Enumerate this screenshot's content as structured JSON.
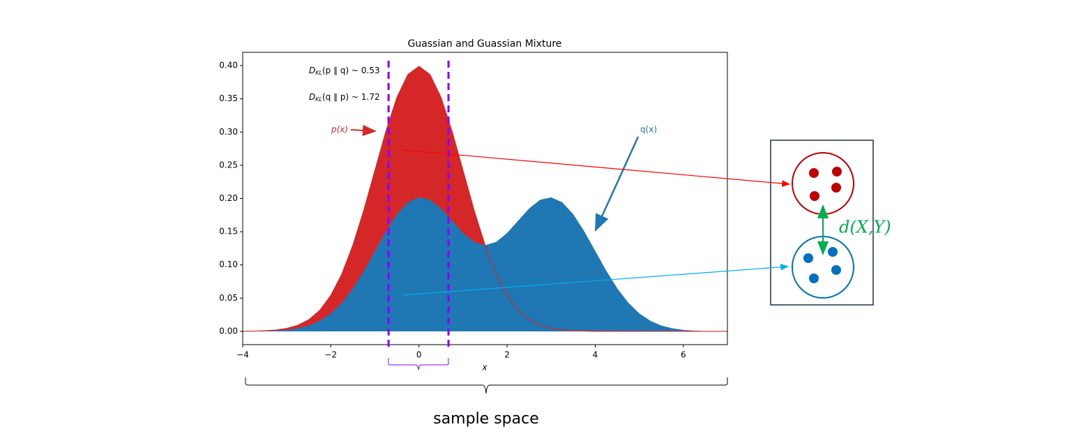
{
  "chart_data": {
    "type": "area",
    "title": "Guassian and Guassian Mixture",
    "xlabel": "x",
    "x": [
      -4,
      -3.75,
      -3.5,
      -3.25,
      -3,
      -2.75,
      -2.5,
      -2.25,
      -2,
      -1.75,
      -1.5,
      -1.25,
      -1,
      -0.75,
      -0.5,
      -0.25,
      0,
      0.25,
      0.5,
      0.75,
      1,
      1.25,
      1.5,
      1.75,
      2,
      2.25,
      2.5,
      2.75,
      3,
      3.25,
      3.5,
      3.75,
      4,
      4.25,
      4.5,
      4.75,
      5,
      5.25,
      5.5,
      5.75,
      6,
      6.25,
      6.5,
      6.75,
      7
    ],
    "series": [
      {
        "name": "p(x)",
        "color": "#d62728",
        "values": [
          0.0001,
          0.0004,
          0.0009,
          0.002,
          0.0044,
          0.0091,
          0.0175,
          0.0317,
          0.054,
          0.0863,
          0.1295,
          0.1826,
          0.242,
          0.3011,
          0.3521,
          0.3867,
          0.3989,
          0.3867,
          0.3521,
          0.3011,
          0.242,
          0.1826,
          0.1295,
          0.0863,
          0.054,
          0.0317,
          0.0175,
          0.0091,
          0.0044,
          0.002,
          0.0009,
          0.0004,
          0.0001,
          0,
          0,
          0,
          0,
          0,
          0,
          0,
          0,
          0,
          0,
          0,
          0
        ]
      },
      {
        "name": "q(x)",
        "color": "#1f77b4",
        "values": [
          0.0001,
          0.0002,
          0.0004,
          0.001,
          0.0022,
          0.0046,
          0.0088,
          0.0159,
          0.027,
          0.0432,
          0.0648,
          0.0913,
          0.1211,
          0.1508,
          0.1765,
          0.1944,
          0.2017,
          0.198,
          0.1849,
          0.1665,
          0.148,
          0.1345,
          0.1296,
          0.1345,
          0.148,
          0.1665,
          0.1849,
          0.198,
          0.2017,
          0.1944,
          0.1765,
          0.1508,
          0.1211,
          0.0913,
          0.0648,
          0.0432,
          0.027,
          0.0159,
          0.0088,
          0.0046,
          0.0022,
          0.001,
          0.0004,
          0.0002,
          0.0001
        ]
      }
    ],
    "xlim": [
      -4,
      7
    ],
    "xticks": [
      {
        "value": -4,
        "label": "−4"
      },
      {
        "value": -2,
        "label": "−2"
      },
      0,
      2,
      4,
      6
    ],
    "ylim": [
      -0.02,
      0.42
    ],
    "yticks": [
      {
        "value": 0,
        "label": "0.00"
      },
      {
        "value": 0.05,
        "label": "0.05"
      },
      {
        "value": 0.1,
        "label": "0.10"
      },
      {
        "value": 0.15,
        "label": "0.15"
      },
      {
        "value": 0.2,
        "label": "0.20"
      },
      {
        "value": 0.25,
        "label": "0.25"
      },
      {
        "value": 0.3,
        "label": "0.30"
      },
      {
        "value": 0.35,
        "label": "0.35"
      },
      {
        "value": 0.4,
        "label": "0.40"
      }
    ],
    "vlines": {
      "color": "#8b00ff",
      "values": [
        -0.69,
        0.67
      ]
    },
    "kl_annotations": [
      {
        "symbol": "D",
        "subscript": "KL",
        "text": "(p ∥ q) ~ 0.53"
      },
      {
        "symbol": "D",
        "subscript": "KL",
        "text": "(q ∥ p) ~ 1.72"
      }
    ],
    "span_label": "sample space",
    "distance_label": "d(X,Y)"
  }
}
